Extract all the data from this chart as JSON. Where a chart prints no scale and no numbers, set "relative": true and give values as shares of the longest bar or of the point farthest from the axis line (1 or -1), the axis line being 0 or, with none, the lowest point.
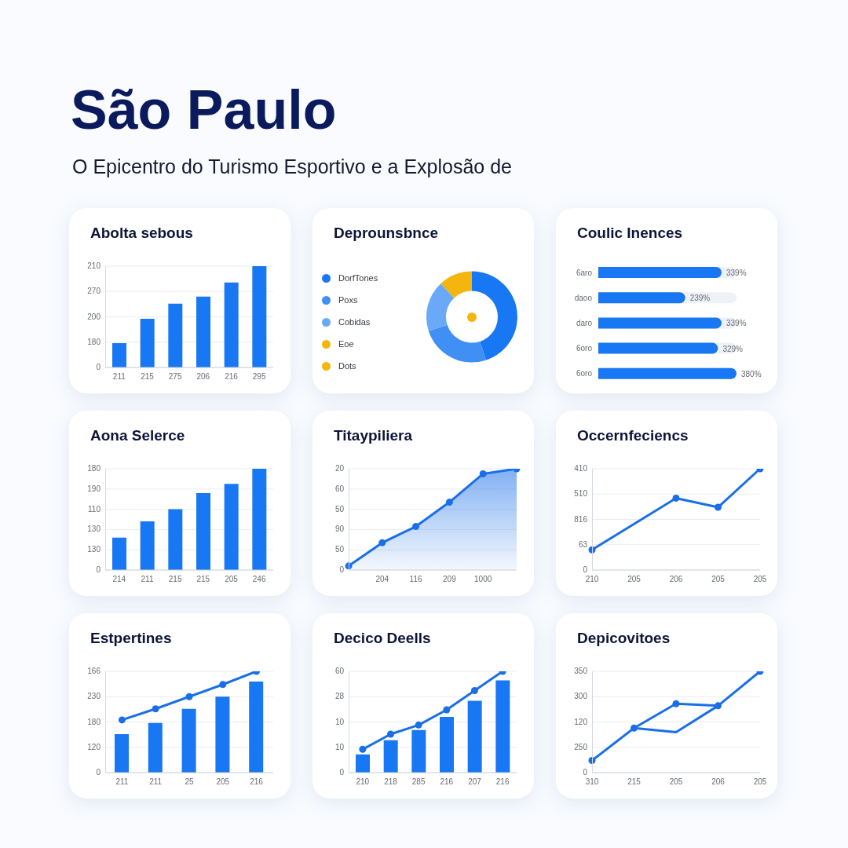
{
  "chart_data": [
    {
      "type": "other",
      "title": "São Paulo",
      "subtitle": "O Epicentro do Turismo Esportivo e a Explosão de"
    },
    {
      "type": "bar",
      "title": "Abolta sebous",
      "categories": [
        "211",
        "215",
        "275",
        "206",
        "216",
        "295"
      ],
      "values": [
        0.24,
        0.48,
        0.63,
        0.7,
        0.84,
        1
      ],
      "color": "#1877f2",
      "relative": true,
      "annotations": [
        "0",
        "180",
        "200",
        "270",
        "210"
      ],
      "grid": "y"
    },
    {
      "type": "donut",
      "title": "Deprounsbnce",
      "categories": [
        "DorfTones",
        "Poxs",
        "Cobidas",
        "Eoe",
        "Dots"
      ],
      "values": [
        45,
        25,
        18,
        12,
        0
      ],
      "colors": [
        "#1877f2",
        "#3f8ff5",
        "#6aa9f8",
        "#f5b50f",
        "#f5b50f"
      ],
      "legend": "left"
    },
    {
      "type": "bar",
      "orientation": "horizontal",
      "title": "Coulic Inences",
      "categories": [
        "6aro",
        "daoo",
        "daro",
        "6oro",
        "6oro"
      ],
      "values": [
        339,
        239,
        339,
        329,
        380
      ],
      "value_labels": [
        "339%",
        "239%",
        "339%",
        "329%",
        "380%"
      ],
      "color": "#1877f2"
    },
    {
      "type": "bar",
      "title": "Aona Selerce",
      "categories": [
        "214",
        "211",
        "215",
        "215",
        "205",
        "246"
      ],
      "values": [
        0.32,
        0.48,
        0.6,
        0.76,
        0.85,
        1
      ],
      "color": "#1877f2",
      "relative": true,
      "annotations": [
        "0",
        "130",
        "130",
        "110",
        "190",
        "180"
      ],
      "grid": "y"
    },
    {
      "type": "area",
      "title": "Titaypiliera",
      "categories": [
        null,
        "204",
        "116",
        "209",
        "1000",
        null
      ],
      "values": [
        0.04,
        0.27,
        0.43,
        0.67,
        0.95,
        1
      ],
      "color": "#1a6fe8",
      "marker": "circle",
      "relative": true,
      "annotations": [
        "0",
        "50",
        "90",
        "50",
        "60",
        "20"
      ],
      "grid": "y"
    },
    {
      "type": "line",
      "title": "Occernfeciencs",
      "categories": [
        "210",
        "205",
        "206",
        "205",
        "205"
      ],
      "values": [
        0.2,
        null,
        0.71,
        0.62,
        1
      ],
      "color": "#1a6fe8",
      "marker": "circle",
      "relative": true,
      "annotations": [
        "0",
        "63",
        "816",
        "510",
        "410"
      ],
      "grid": "y"
    },
    {
      "type": "bar",
      "title": "Estpertines",
      "categories": [
        "211",
        "211",
        "25",
        "205",
        "216"
      ],
      "series": [
        {
          "type": "bar",
          "color": "#1877f2",
          "values": [
            0.38,
            0.49,
            0.63,
            0.75,
            0.9
          ]
        },
        {
          "type": "line",
          "color": "#1a6fe8",
          "marker": "circle",
          "values": [
            0.52,
            0.63,
            0.75,
            0.87,
            1
          ]
        }
      ],
      "relative": true,
      "annotations": [
        "0",
        "120",
        "180",
        "230",
        "166"
      ],
      "grid": "y"
    },
    {
      "type": "bar",
      "title": "Decico Deells",
      "categories": [
        "210",
        "218",
        "285",
        "216",
        "207",
        "216"
      ],
      "series": [
        {
          "type": "bar",
          "color": "#1877f2",
          "values": [
            0.18,
            0.32,
            0.42,
            0.55,
            0.71,
            0.91
          ]
        },
        {
          "type": "line",
          "color": "#1a6fe8",
          "marker": "circle",
          "values": [
            0.23,
            0.38,
            0.47,
            0.62,
            0.81,
            1
          ]
        }
      ],
      "relative": true,
      "annotations": [
        "0",
        "10",
        "10",
        "28",
        "60"
      ],
      "grid": "y"
    },
    {
      "type": "line",
      "title": "Depicovitoes",
      "categories": [
        "310",
        "215",
        "205",
        "206",
        "205"
      ],
      "series": [
        {
          "color": "#1a6fe8",
          "marker": "circle",
          "values": [
            0.12,
            0.44,
            0.68,
            0.66,
            1
          ]
        },
        {
          "color": "#1a6fe8",
          "marker": "none",
          "values": [
            null,
            0.44,
            0.4,
            0.66,
            null
          ]
        }
      ],
      "relative": true,
      "annotations": [
        "0",
        "250",
        "120",
        "300",
        "350"
      ],
      "grid": "y"
    }
  ]
}
